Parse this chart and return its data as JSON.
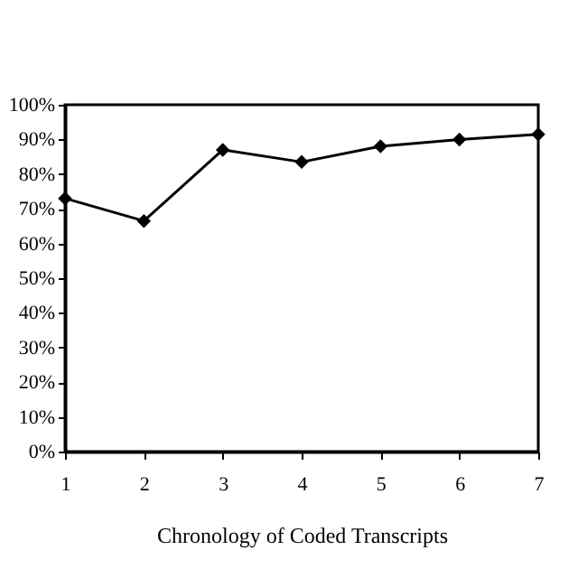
{
  "chart_data": {
    "type": "line",
    "xlabel": "Chronology of Coded Transcripts",
    "categories": [
      "1",
      "2",
      "3",
      "4",
      "5",
      "6",
      "7"
    ],
    "series": [
      {
        "color": "#000000",
        "values": [
          73,
          66.5,
          87,
          83.5,
          88,
          90,
          91.5
        ]
      }
    ],
    "ylim": [
      0,
      100
    ],
    "yticks": [
      {
        "value": 0,
        "label": "0%"
      },
      {
        "value": 10,
        "label": "10%"
      },
      {
        "value": 20,
        "label": "20%"
      },
      {
        "value": 30,
        "label": "30%"
      },
      {
        "value": 40,
        "label": "40%"
      },
      {
        "value": 50,
        "label": "50%"
      },
      {
        "value": 60,
        "label": "60%"
      },
      {
        "value": 70,
        "label": "70%"
      },
      {
        "value": 80,
        "label": "80%"
      },
      {
        "value": 90,
        "label": "90%"
      },
      {
        "value": 100,
        "label": "100%"
      }
    ],
    "grid": false,
    "legend": false,
    "marker": "diamond",
    "line_style": "solid"
  }
}
